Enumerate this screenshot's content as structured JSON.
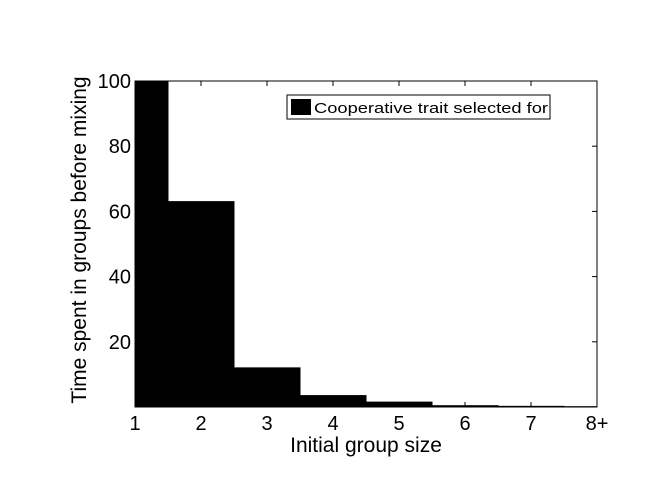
{
  "chart_data": {
    "type": "bar",
    "title": "",
    "xlabel": "Initial group size",
    "ylabel": "Time spent in groups before mixing",
    "categories": [
      "1",
      "2",
      "3",
      "4",
      "5",
      "6",
      "7",
      "8+"
    ],
    "series": [
      {
        "name": "Cooperative trait selected for",
        "color": "#000000",
        "values": [
          100,
          63,
          12,
          3.5,
          1.5,
          0.4,
          0.2,
          0.1
        ]
      }
    ],
    "xlim": [
      1,
      8
    ],
    "ylim": [
      0,
      100
    ],
    "yticks": [
      20,
      40,
      60,
      80,
      100
    ],
    "grid": false,
    "legend": "top-right"
  }
}
